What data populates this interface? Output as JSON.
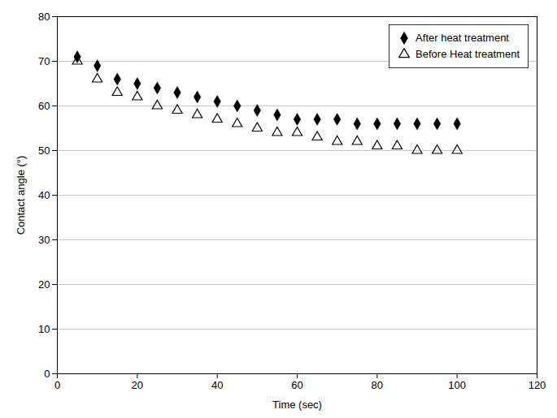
{
  "chart_data": {
    "type": "scatter",
    "x_label": "Time (sec)",
    "y_label": "Contact angle (°)",
    "x": [
      5,
      10,
      15,
      20,
      25,
      30,
      35,
      40,
      45,
      50,
      55,
      60,
      65,
      70,
      75,
      80,
      85,
      90,
      95,
      100
    ],
    "series": [
      {
        "name": "After heat treatment",
        "color": "#000000",
        "marker": "diamond",
        "values": [
          71,
          69,
          66,
          65,
          64,
          63,
          62,
          61,
          60,
          59,
          58,
          57,
          57,
          57,
          56,
          56,
          56,
          56,
          56,
          56
        ]
      },
      {
        "name": "Before Heat treatment",
        "color": "#000000",
        "marker": "triangle-open",
        "values": [
          70,
          66,
          63,
          62,
          60,
          59,
          58,
          57,
          56,
          55,
          54,
          54,
          53,
          52,
          52,
          51,
          51,
          50,
          50,
          50
        ]
      }
    ],
    "xlim": [
      0,
      120
    ],
    "ylim": [
      0,
      80
    ],
    "xticks": [
      0,
      20,
      40,
      60,
      80,
      100,
      120
    ],
    "yticks": [
      0,
      10,
      20,
      30,
      40,
      50,
      60,
      70,
      80
    ],
    "grid": "y",
    "legend": "upper right"
  }
}
